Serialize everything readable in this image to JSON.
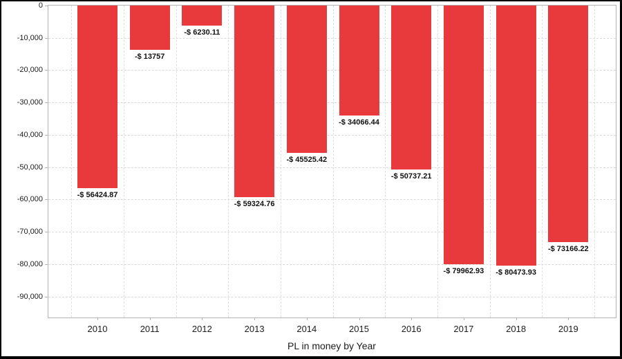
{
  "chart_data": {
    "type": "bar",
    "title": "",
    "xlabel": "PL in money by Year",
    "ylabel": "",
    "categories": [
      "2010",
      "2011",
      "2012",
      "2013",
      "2014",
      "2015",
      "2016",
      "2017",
      "2018",
      "2019"
    ],
    "values": [
      -56424.87,
      -13757,
      -6230.11,
      -59324.76,
      -45525.42,
      -34066.44,
      -50737.21,
      -79962.93,
      -80473.93,
      -73166.22
    ],
    "bar_labels": [
      "-$ 56424.87",
      "-$ 13757",
      "-$ 6230.11",
      "-$ 59324.76",
      "-$ 45525.42",
      "-$ 34066.44",
      "-$ 50737.21",
      "-$ 79962.93",
      "-$ 80473.93",
      "-$ 73166.22"
    ],
    "yticks": [
      {
        "label": "0",
        "value": 0
      },
      {
        "label": "-10,000",
        "value": -10000
      },
      {
        "label": "-20,000",
        "value": -20000
      },
      {
        "label": "-30,000",
        "value": -30000
      },
      {
        "label": "-40,000",
        "value": -40000
      },
      {
        "label": "-50,000",
        "value": -50000
      },
      {
        "label": "-60,000",
        "value": -60000
      },
      {
        "label": "-70,000",
        "value": -70000
      },
      {
        "label": "-80,000",
        "value": -80000
      },
      {
        "label": "-90,000",
        "value": -90000
      }
    ],
    "ylim": [
      -96500,
      0
    ],
    "grid": true,
    "legend": false,
    "bar_color": "#e8393d",
    "axis_color": "#b3b3b3"
  }
}
